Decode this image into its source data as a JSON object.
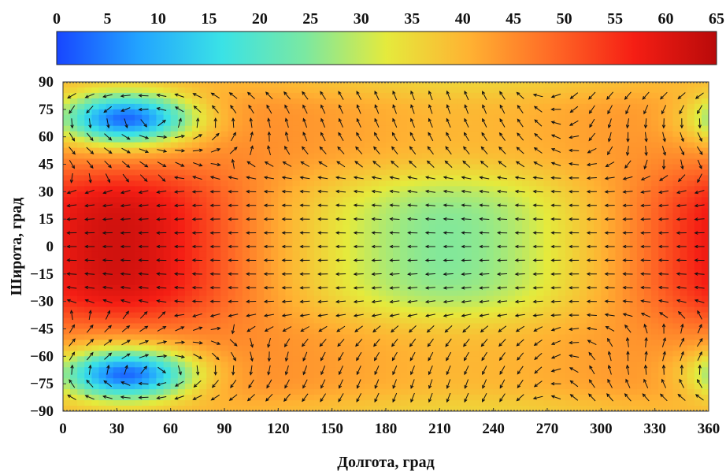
{
  "chart_data": {
    "type": "heatmap",
    "colorbar": {
      "ticks": [
        "0",
        "5",
        "10",
        "15",
        "20",
        "25",
        "30",
        "35",
        "40",
        "45",
        "50",
        "55",
        "60",
        "65"
      ],
      "range": [
        0,
        65
      ],
      "colormap": [
        "#1846ff",
        "#22a4ff",
        "#3ae2e6",
        "#7ae8a2",
        "#e5ea3c",
        "#ffb232",
        "#ff6a26",
        "#f51e14",
        "#b90a0a"
      ]
    },
    "x": {
      "label": "Долгота, град",
      "ticks": [
        "0",
        "30",
        "60",
        "90",
        "120",
        "150",
        "180",
        "210",
        "240",
        "270",
        "300",
        "330",
        "360"
      ],
      "range": [
        0,
        360
      ]
    },
    "y": {
      "label": "Широта, град",
      "ticks": [
        "90",
        "75",
        "60",
        "45",
        "30",
        "15",
        "0",
        "−15",
        "−30",
        "−45",
        "−60",
        "−75",
        "−90"
      ],
      "range": [
        -90,
        90
      ]
    },
    "field": {
      "description_values": "approximate scalar value by region",
      "equatorial_max": {
        "lon": 30,
        "lat": 0,
        "value": 62
      },
      "equatorial_min": {
        "lon": 215,
        "lat": 0,
        "value": 25
      },
      "polar_minima": [
        {
          "lon": 35,
          "lat": 70,
          "value": 3
        },
        {
          "lon": 35,
          "lat": -70,
          "value": 3
        }
      ],
      "polar_high_lon": 225,
      "polar_high_value": 40
    },
    "vectors": "black arrows on a 15° lat × 10° lon grid; westward flow near equator, cyclonic circulation around polar minima",
    "grid": false
  }
}
